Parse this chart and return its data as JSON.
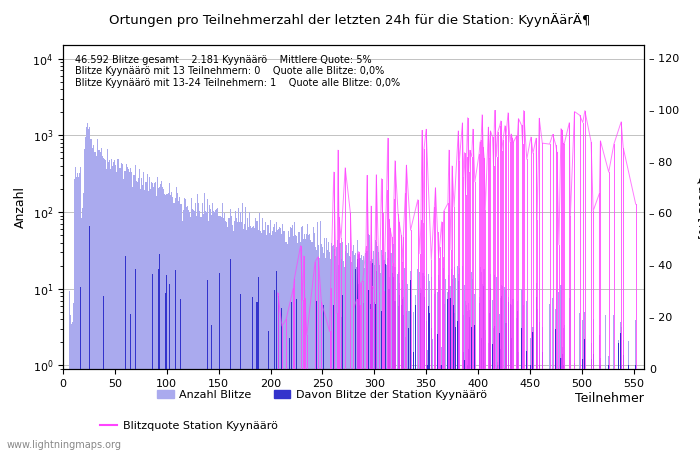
{
  "title": "Ortungen pro Teilnehmerzahl der letzten 24h für die Station: KyynÄärÄ¶",
  "ylabel_left": "Anzahl",
  "ylabel_right": "Quote [%]",
  "annotation_lines": [
    "46.592 Blitze gesamt    2.181 Kyynäärö    Mittlere Quote: 5%",
    "Blitze Kyynäärö mit 13 Teilnehmern: 0    Quote alle Blitze: 0,0%",
    "Blitze Kyynäärö mit 13-24 Teilnehmern: 1    Quote alle Blitze: 0,0%"
  ],
  "legend_label_light": "Anzahl Blitze",
  "legend_label_dark": "Davon Blitze der Station Kyynäärö",
  "legend_label_line": "Blitzquote Station Kyynäärö",
  "watermark": "www.lightningmaps.org",
  "color_light_blue": "#aaaaee",
  "color_dark_blue": "#3333cc",
  "color_magenta": "#ff44ff",
  "xlim": [
    0,
    560
  ],
  "ylim_right": [
    0,
    125
  ],
  "right_ytick_vals": [
    0,
    20,
    40,
    60,
    80,
    100,
    120
  ],
  "right_ytick_labels": [
    "0",
    "20",
    "40",
    "60",
    "80",
    "100",
    "120"
  ],
  "xticks": [
    0,
    50,
    100,
    150,
    200,
    250,
    300,
    350,
    400,
    450,
    500,
    550
  ],
  "figsize": [
    7.0,
    4.5
  ],
  "dpi": 100
}
